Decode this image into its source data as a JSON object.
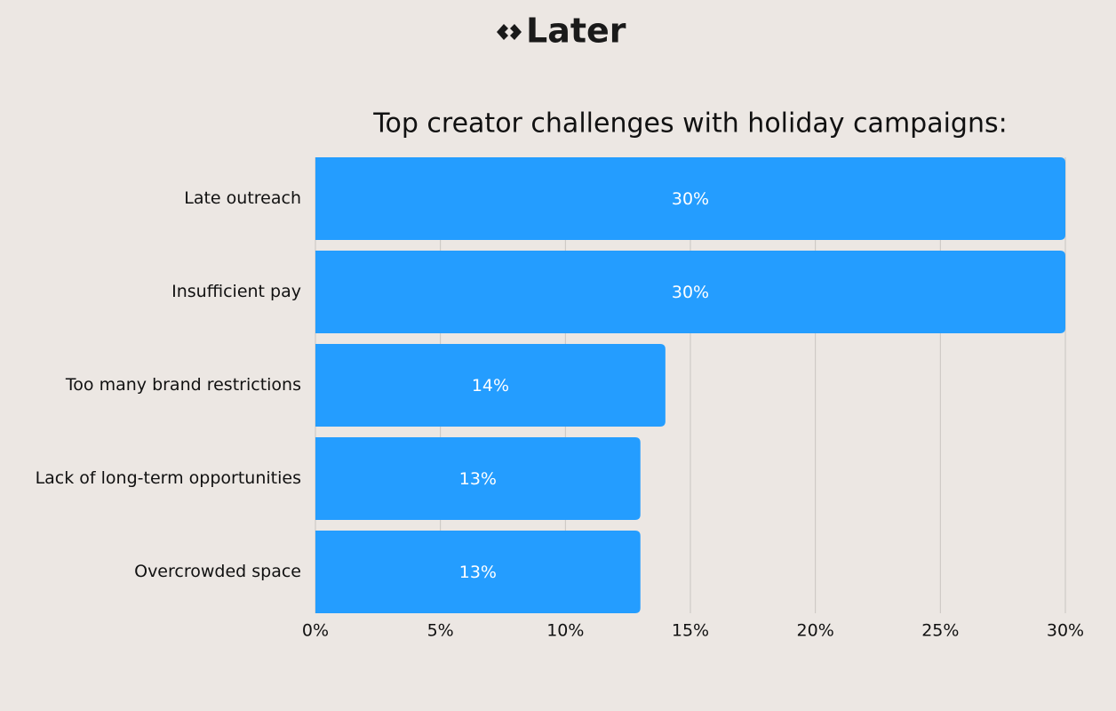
{
  "logo": "Later",
  "chart_data": {
    "type": "bar",
    "orientation": "horizontal",
    "title": "Top creator challenges with holiday campaigns:",
    "categories": [
      "Late outreach",
      "Insufficient pay",
      "Too many brand restrictions",
      "Lack of long-term opportunities",
      "Overcrowded space"
    ],
    "values": [
      30,
      30,
      14,
      13,
      13
    ],
    "value_labels": [
      "30%",
      "30%",
      "14%",
      "13%",
      "13%"
    ],
    "color": "#249dff",
    "xlim": [
      0,
      30
    ],
    "xticks": [
      {
        "value": 0,
        "label": "0%"
      },
      {
        "value": 5,
        "label": "5%"
      },
      {
        "value": 10,
        "label": "10%"
      },
      {
        "value": 15,
        "label": "15%"
      },
      {
        "value": 20,
        "label": "20%"
      },
      {
        "value": 25,
        "label": "25%"
      },
      {
        "value": 30,
        "label": "30%"
      }
    ],
    "grid": true
  }
}
